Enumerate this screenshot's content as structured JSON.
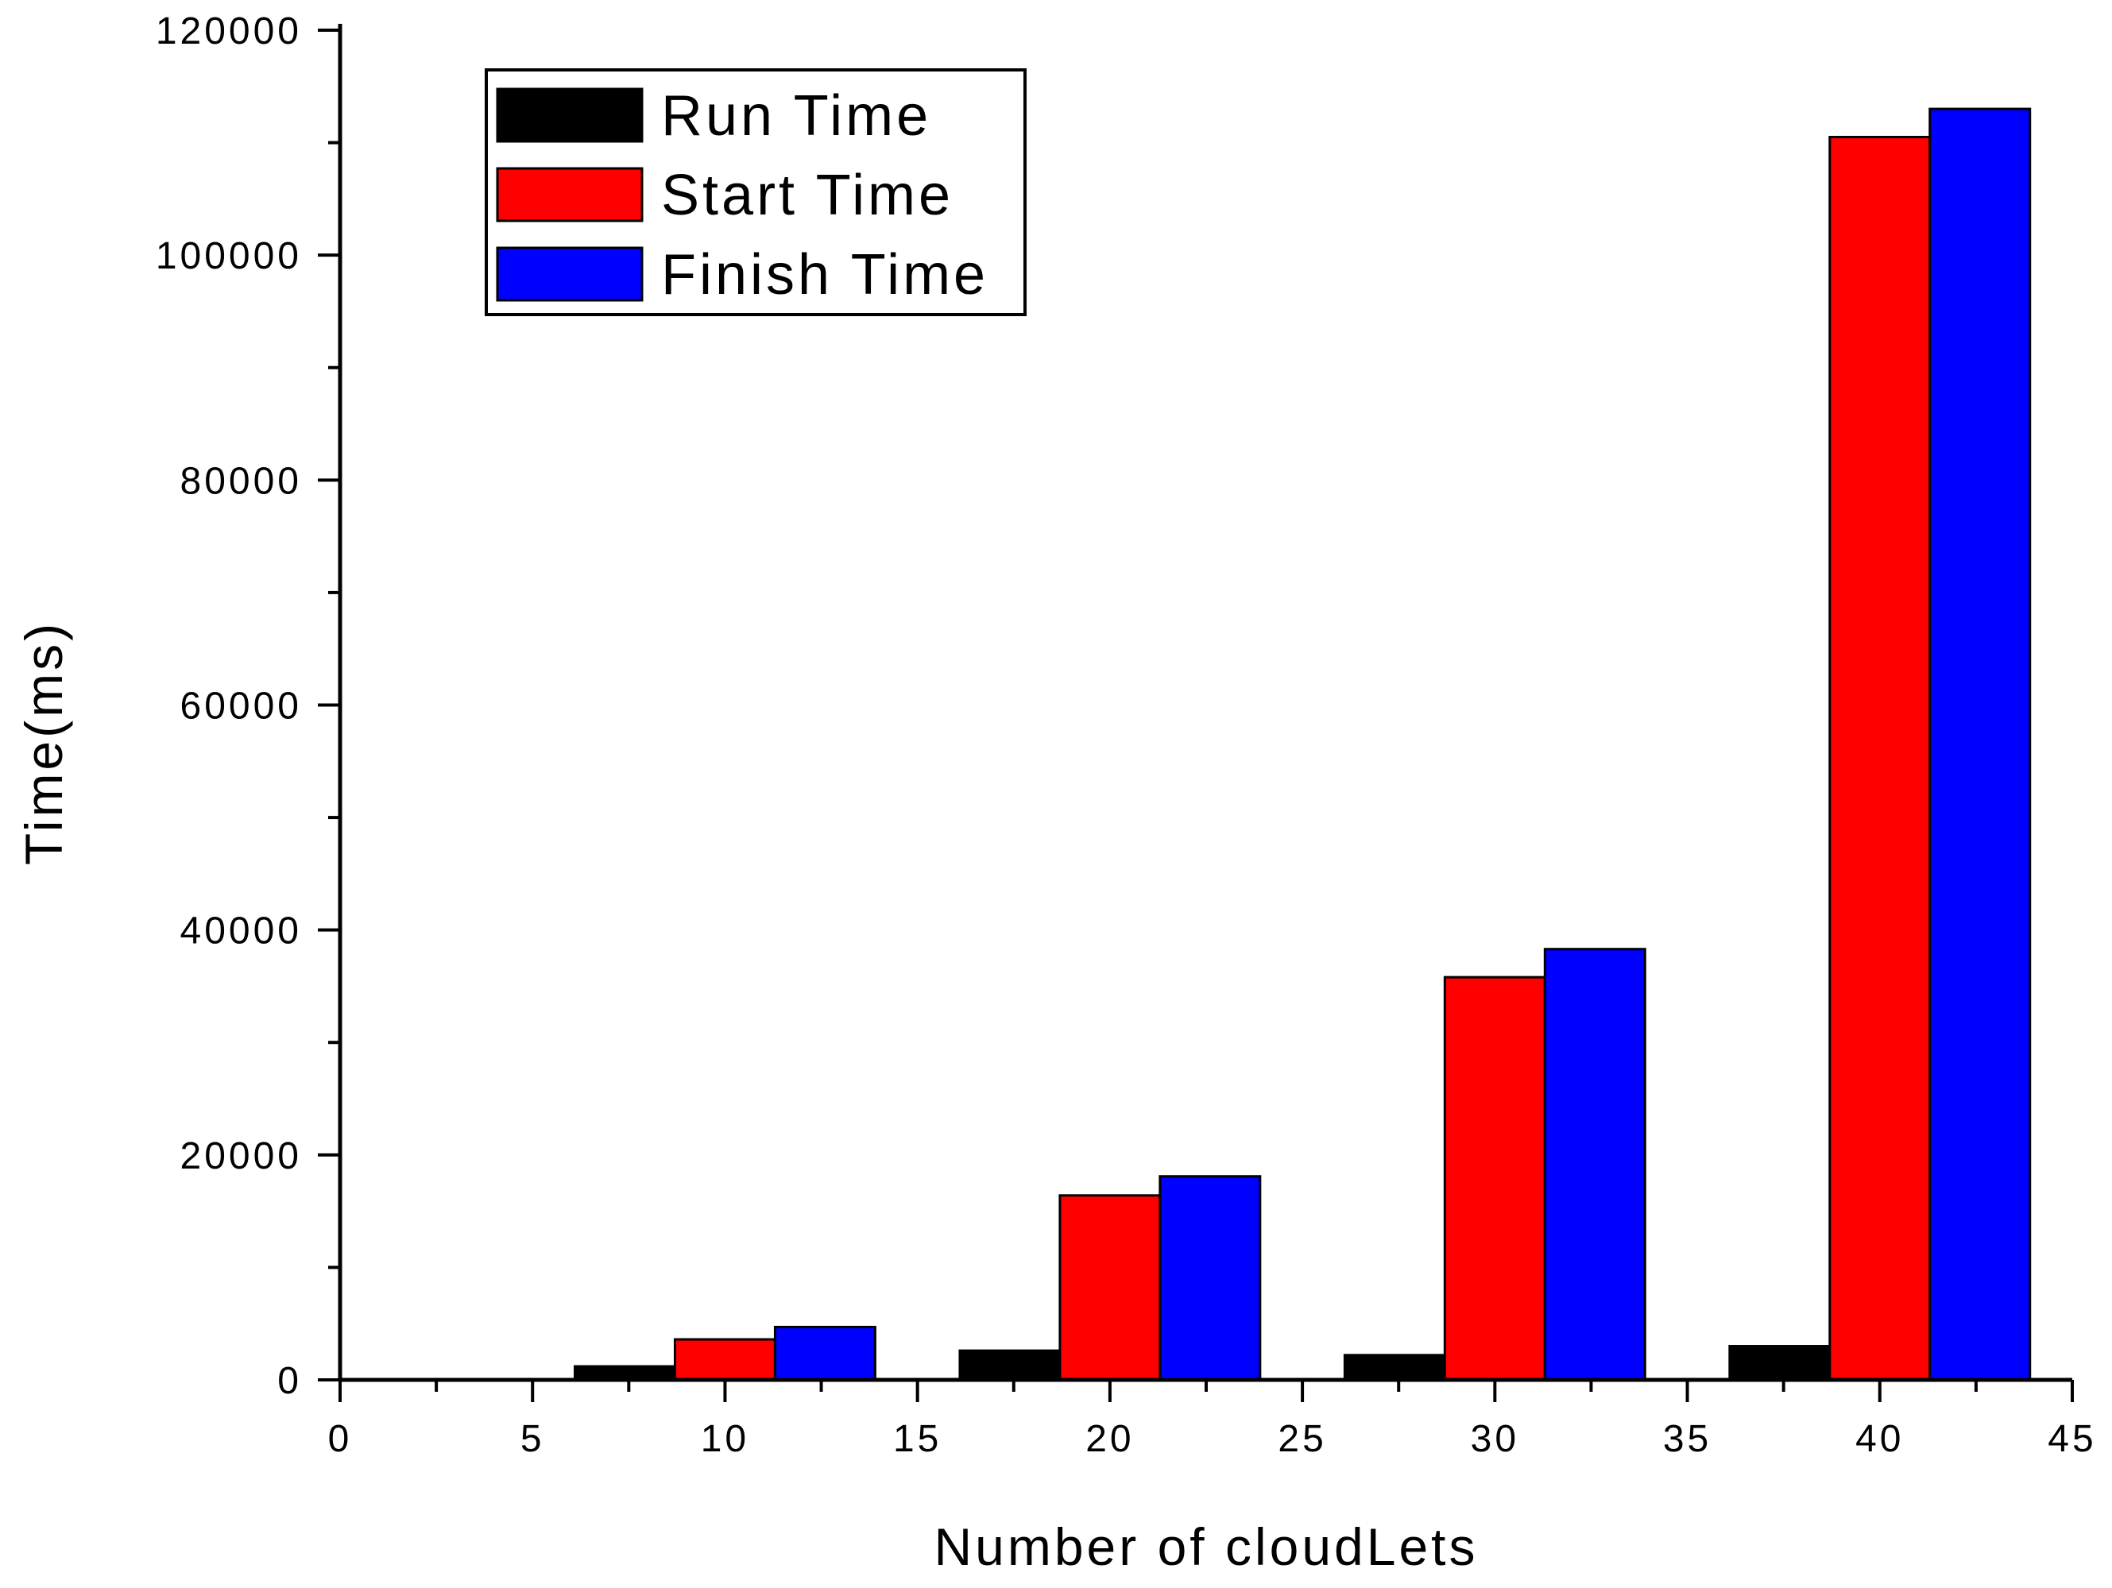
{
  "chart_data": {
    "type": "bar",
    "xlabel": "Number of cloudLets",
    "ylabel": "Time(ms)",
    "xlim": [
      0,
      45
    ],
    "ylim": [
      0,
      120000
    ],
    "x_ticks": [
      0,
      5,
      10,
      15,
      20,
      25,
      30,
      35,
      40,
      45
    ],
    "x_tick_labels": [
      "0",
      "5",
      "10",
      "15",
      "20",
      "25",
      "30",
      "35",
      "40",
      "45"
    ],
    "y_ticks": [
      0,
      20000,
      40000,
      60000,
      80000,
      100000,
      120000
    ],
    "y_tick_labels": [
      "0",
      "20000",
      "40000",
      "60000",
      "80000",
      "100000",
      "120000"
    ],
    "grid": false,
    "legend_position": "top-left",
    "categories": [
      10,
      20,
      30,
      40
    ],
    "series": [
      {
        "name": "Run Time",
        "color": "#000000",
        "values": [
          1200,
          2600,
          2200,
          3000
        ]
      },
      {
        "name": "Start Time",
        "color": "#ff0000",
        "values": [
          3600,
          16400,
          35800,
          110500
        ]
      },
      {
        "name": "Finish Time",
        "color": "#0000ff",
        "values": [
          4700,
          18100,
          38300,
          113000
        ]
      }
    ]
  }
}
